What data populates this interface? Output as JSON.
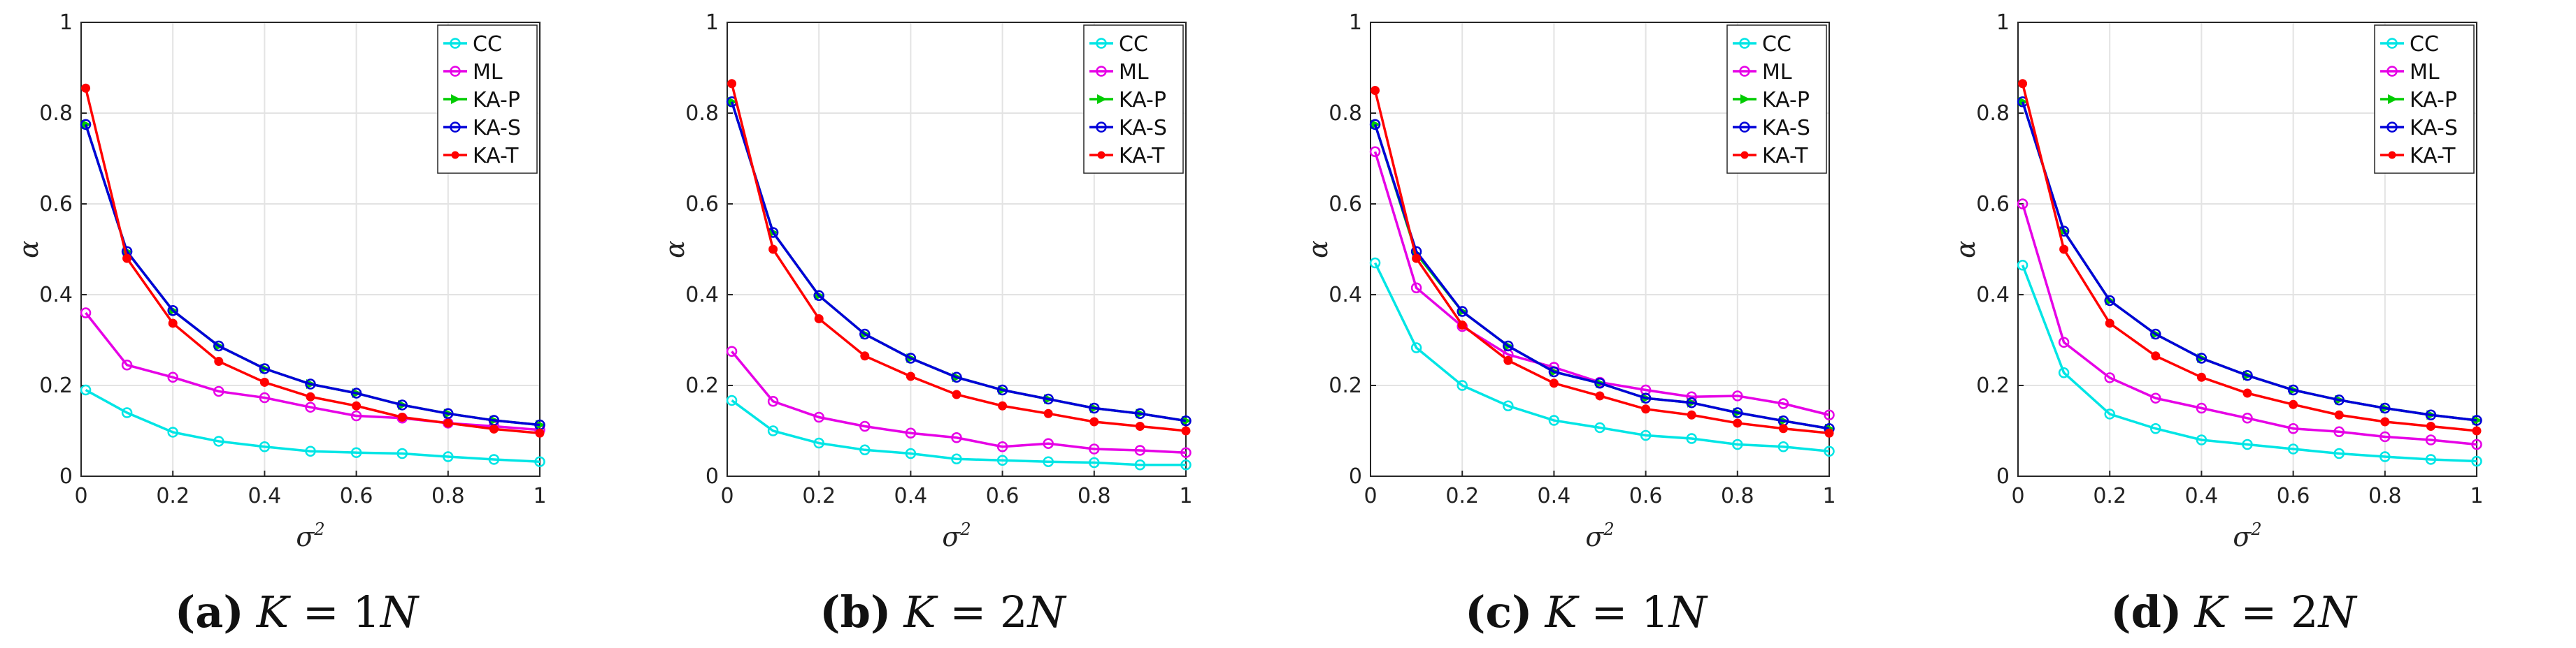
{
  "colors": {
    "CC": "#00e5e5",
    "ML": "#e600e6",
    "KA-P": "#00cc00",
    "KA-S": "#0000d9",
    "KA-T": "#ff0000"
  },
  "chart_data": [
    {
      "type": "line",
      "caption": {
        "letter": "(a)",
        "k_var": "K",
        "equals": " = 1",
        "n_var": "N"
      },
      "xlabel": {
        "base": "σ",
        "sup": "2"
      },
      "ylabel": "α",
      "xlim": [
        0,
        1
      ],
      "ylim": [
        0,
        1
      ],
      "xticks": [
        "0",
        "0.2",
        "0.4",
        "0.6",
        "0.8",
        "1"
      ],
      "yticks": [
        "0",
        "0.2",
        "0.4",
        "0.6",
        "0.8",
        "1"
      ],
      "grid": true,
      "legend_position": "top-right",
      "x": [
        0.01,
        0.1,
        0.2,
        0.3,
        0.4,
        0.5,
        0.6,
        0.7,
        0.8,
        0.9,
        1.0
      ],
      "series": [
        {
          "name": "CC",
          "values": [
            0.19,
            0.14,
            0.097,
            0.077,
            0.065,
            0.055,
            0.052,
            0.05,
            0.043,
            0.037,
            0.032
          ]
        },
        {
          "name": "ML",
          "values": [
            0.36,
            0.245,
            0.218,
            0.187,
            0.173,
            0.152,
            0.133,
            0.128,
            0.117,
            0.11,
            0.102
          ]
        },
        {
          "name": "KA-P",
          "values": [
            0.775,
            0.495,
            0.365,
            0.287,
            0.237,
            0.203,
            0.183,
            0.157,
            0.138,
            0.123,
            0.113
          ]
        },
        {
          "name": "KA-S",
          "values": [
            0.775,
            0.495,
            0.365,
            0.287,
            0.237,
            0.203,
            0.183,
            0.157,
            0.138,
            0.123,
            0.113
          ]
        },
        {
          "name": "KA-T",
          "values": [
            0.855,
            0.48,
            0.337,
            0.253,
            0.207,
            0.175,
            0.155,
            0.13,
            0.117,
            0.104,
            0.095
          ]
        }
      ]
    },
    {
      "type": "line",
      "caption": {
        "letter": "(b)",
        "k_var": "K",
        "equals": " = 2",
        "n_var": "N"
      },
      "xlabel": {
        "base": "σ",
        "sup": "2"
      },
      "ylabel": "α",
      "xlim": [
        0,
        1
      ],
      "ylim": [
        0,
        1
      ],
      "xticks": [
        "0",
        "0.2",
        "0.4",
        "0.6",
        "0.8",
        "1"
      ],
      "yticks": [
        "0",
        "0.2",
        "0.4",
        "0.6",
        "0.8",
        "1"
      ],
      "grid": true,
      "legend_position": "top-right",
      "x": [
        0.01,
        0.1,
        0.2,
        0.3,
        0.4,
        0.5,
        0.6,
        0.7,
        0.8,
        0.9,
        1.0
      ],
      "series": [
        {
          "name": "CC",
          "values": [
            0.167,
            0.1,
            0.073,
            0.058,
            0.05,
            0.038,
            0.035,
            0.032,
            0.03,
            0.025,
            0.025
          ]
        },
        {
          "name": "ML",
          "values": [
            0.275,
            0.165,
            0.13,
            0.11,
            0.095,
            0.085,
            0.065,
            0.072,
            0.06,
            0.057,
            0.052
          ]
        },
        {
          "name": "KA-P",
          "values": [
            0.825,
            0.537,
            0.398,
            0.313,
            0.26,
            0.218,
            0.19,
            0.17,
            0.15,
            0.138,
            0.122
          ]
        },
        {
          "name": "KA-S",
          "values": [
            0.825,
            0.537,
            0.398,
            0.313,
            0.26,
            0.218,
            0.19,
            0.17,
            0.15,
            0.138,
            0.122
          ]
        },
        {
          "name": "KA-T",
          "values": [
            0.865,
            0.5,
            0.347,
            0.265,
            0.22,
            0.18,
            0.155,
            0.138,
            0.12,
            0.11,
            0.1
          ]
        }
      ]
    },
    {
      "type": "line",
      "caption": {
        "letter": "(c)",
        "k_var": "K",
        "equals": " = 1",
        "n_var": "N"
      },
      "xlabel": {
        "base": "σ",
        "sup": "2"
      },
      "ylabel": "α",
      "xlim": [
        0,
        1
      ],
      "ylim": [
        0,
        1
      ],
      "xticks": [
        "0",
        "0.2",
        "0.4",
        "0.6",
        "0.8",
        "1"
      ],
      "yticks": [
        "0",
        "0.2",
        "0.4",
        "0.6",
        "0.8",
        "1"
      ],
      "grid": true,
      "legend_position": "top-right",
      "x": [
        0.01,
        0.1,
        0.2,
        0.3,
        0.4,
        0.5,
        0.6,
        0.7,
        0.8,
        0.9,
        1.0
      ],
      "series": [
        {
          "name": "CC",
          "values": [
            0.47,
            0.283,
            0.2,
            0.155,
            0.123,
            0.107,
            0.09,
            0.083,
            0.07,
            0.065,
            0.055
          ]
        },
        {
          "name": "ML",
          "values": [
            0.715,
            0.415,
            0.33,
            0.268,
            0.24,
            0.207,
            0.19,
            0.175,
            0.177,
            0.16,
            0.135
          ]
        },
        {
          "name": "KA-P",
          "values": [
            0.775,
            0.49,
            0.363,
            0.287,
            0.23,
            0.205,
            0.172,
            0.162,
            0.14,
            0.122,
            0.105
          ]
        },
        {
          "name": "KA-S",
          "values": [
            0.775,
            0.495,
            0.363,
            0.287,
            0.23,
            0.205,
            0.172,
            0.162,
            0.14,
            0.122,
            0.105
          ]
        },
        {
          "name": "KA-T",
          "values": [
            0.85,
            0.48,
            0.333,
            0.255,
            0.205,
            0.177,
            0.148,
            0.135,
            0.117,
            0.105,
            0.095
          ]
        }
      ]
    },
    {
      "type": "line",
      "caption": {
        "letter": "(d)",
        "k_var": "K",
        "equals": " = 2",
        "n_var": "N"
      },
      "xlabel": {
        "base": "σ",
        "sup": "2"
      },
      "ylabel": "α",
      "xlim": [
        0,
        1
      ],
      "ylim": [
        0,
        1
      ],
      "xticks": [
        "0",
        "0.2",
        "0.4",
        "0.6",
        "0.8",
        "1"
      ],
      "yticks": [
        "0",
        "0.2",
        "0.4",
        "0.6",
        "0.8",
        "1"
      ],
      "grid": true,
      "legend_position": "top-right",
      "x": [
        0.01,
        0.1,
        0.2,
        0.3,
        0.4,
        0.5,
        0.6,
        0.7,
        0.8,
        0.9,
        1.0
      ],
      "series": [
        {
          "name": "CC",
          "values": [
            0.465,
            0.228,
            0.137,
            0.105,
            0.08,
            0.07,
            0.06,
            0.05,
            0.043,
            0.037,
            0.033
          ]
        },
        {
          "name": "ML",
          "values": [
            0.6,
            0.295,
            0.217,
            0.172,
            0.15,
            0.128,
            0.105,
            0.098,
            0.087,
            0.08,
            0.07
          ]
        },
        {
          "name": "KA-P",
          "values": [
            0.825,
            0.54,
            0.387,
            0.313,
            0.26,
            0.222,
            0.19,
            0.168,
            0.15,
            0.135,
            0.123
          ]
        },
        {
          "name": "KA-S",
          "values": [
            0.825,
            0.54,
            0.387,
            0.313,
            0.26,
            0.222,
            0.19,
            0.168,
            0.15,
            0.135,
            0.123
          ]
        },
        {
          "name": "KA-T",
          "values": [
            0.865,
            0.5,
            0.337,
            0.265,
            0.218,
            0.183,
            0.158,
            0.135,
            0.12,
            0.11,
            0.1
          ]
        }
      ]
    }
  ]
}
